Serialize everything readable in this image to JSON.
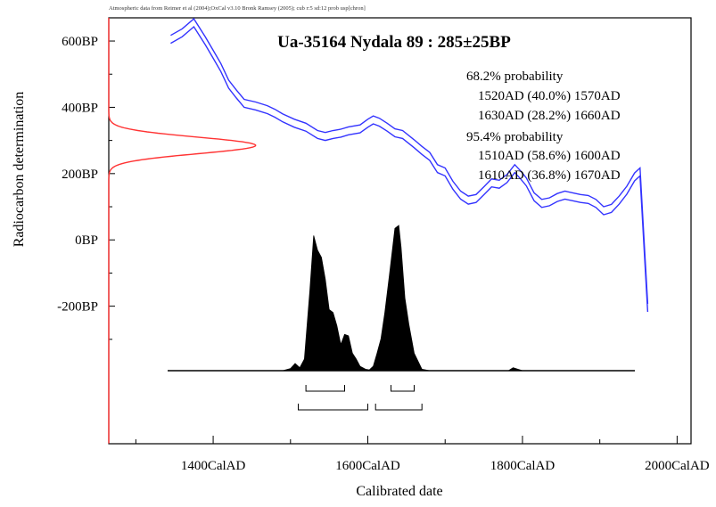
{
  "header_note": "Atmospheric data from Reimer et al (2004);OxCal v3.10 Bronk Ramsey (2005); cub r:5 sd:12 prob usp[chron]",
  "chart_data": {
    "type": "line",
    "title": "Ua-35164 Nydala 89 : 285±25BP",
    "xlabel": "Calibrated date",
    "ylabel": "Radiocarbon determination",
    "xlim": [
      1265,
      2018
    ],
    "ylim": [
      -615,
      670
    ],
    "x_ticks": [
      {
        "value": 1400,
        "label": "1400CalAD"
      },
      {
        "value": 1600,
        "label": "1600CalAD"
      },
      {
        "value": 1800,
        "label": "1800CalAD"
      },
      {
        "value": 2000,
        "label": "2000CalAD"
      }
    ],
    "x_minor_ticks": [
      1300,
      1500,
      1700,
      1900
    ],
    "y_ticks": [
      {
        "value": 600,
        "label": "600BP"
      },
      {
        "value": 400,
        "label": "400BP"
      },
      {
        "value": 200,
        "label": "200BP"
      },
      {
        "value": 0,
        "label": "0BP"
      },
      {
        "value": -200,
        "label": "-200BP"
      }
    ],
    "calibration_curve": {
      "color": "#3333ff",
      "band_halfwidth": 12,
      "points": [
        [
          1345,
          605
        ],
        [
          1360,
          625
        ],
        [
          1375,
          655
        ],
        [
          1390,
          600
        ],
        [
          1400,
          560
        ],
        [
          1410,
          520
        ],
        [
          1420,
          470
        ],
        [
          1430,
          440
        ],
        [
          1440,
          412
        ],
        [
          1455,
          404
        ],
        [
          1470,
          393
        ],
        [
          1480,
          382
        ],
        [
          1490,
          368
        ],
        [
          1505,
          352
        ],
        [
          1520,
          340
        ],
        [
          1535,
          318
        ],
        [
          1545,
          312
        ],
        [
          1555,
          318
        ],
        [
          1565,
          322
        ],
        [
          1575,
          329
        ],
        [
          1590,
          335
        ],
        [
          1600,
          352
        ],
        [
          1607,
          362
        ],
        [
          1615,
          355
        ],
        [
          1625,
          340
        ],
        [
          1635,
          323
        ],
        [
          1645,
          318
        ],
        [
          1660,
          290
        ],
        [
          1670,
          270
        ],
        [
          1680,
          252
        ],
        [
          1690,
          215
        ],
        [
          1700,
          205
        ],
        [
          1710,
          165
        ],
        [
          1720,
          135
        ],
        [
          1730,
          120
        ],
        [
          1740,
          125
        ],
        [
          1750,
          148
        ],
        [
          1760,
          172
        ],
        [
          1770,
          168
        ],
        [
          1780,
          185
        ],
        [
          1790,
          215
        ],
        [
          1798,
          195
        ],
        [
          1805,
          175
        ],
        [
          1815,
          130
        ],
        [
          1825,
          110
        ],
        [
          1835,
          115
        ],
        [
          1845,
          128
        ],
        [
          1855,
          135
        ],
        [
          1865,
          130
        ],
        [
          1875,
          125
        ],
        [
          1885,
          122
        ],
        [
          1895,
          110
        ],
        [
          1905,
          88
        ],
        [
          1915,
          95
        ],
        [
          1925,
          120
        ],
        [
          1935,
          150
        ],
        [
          1945,
          190
        ],
        [
          1952,
          205
        ],
        [
          1958,
          -45
        ],
        [
          1962,
          -205
        ]
      ]
    },
    "measurement_distribution": {
      "color": "#ff3333",
      "mean": 285,
      "sigma": 25
    },
    "calibrated_distribution": {
      "color": "#000000",
      "points": [
        [
          1490,
          0
        ],
        [
          1500,
          0.015
        ],
        [
          1506,
          0.05
        ],
        [
          1512,
          0.02
        ],
        [
          1518,
          0.08
        ],
        [
          1525,
          0.55
        ],
        [
          1530,
          0.93
        ],
        [
          1535,
          0.83
        ],
        [
          1540,
          0.78
        ],
        [
          1545,
          0.63
        ],
        [
          1550,
          0.42
        ],
        [
          1555,
          0.4
        ],
        [
          1560,
          0.31
        ],
        [
          1565,
          0.18
        ],
        [
          1570,
          0.25
        ],
        [
          1575,
          0.24
        ],
        [
          1580,
          0.12
        ],
        [
          1585,
          0.08
        ],
        [
          1590,
          0.03
        ],
        [
          1597,
          0.01
        ],
        [
          1602,
          0.005
        ],
        [
          1607,
          0.03
        ],
        [
          1612,
          0.12
        ],
        [
          1617,
          0.22
        ],
        [
          1622,
          0.4
        ],
        [
          1628,
          0.66
        ],
        [
          1635,
          0.98
        ],
        [
          1640,
          1.0
        ],
        [
          1643,
          0.85
        ],
        [
          1648,
          0.5
        ],
        [
          1653,
          0.32
        ],
        [
          1660,
          0.12
        ],
        [
          1670,
          0.01
        ],
        [
          1680,
          0
        ],
        [
          1782,
          0
        ],
        [
          1788,
          0.02
        ],
        [
          1794,
          0.01
        ],
        [
          1800,
          0
        ]
      ]
    },
    "range_brackets": [
      {
        "level": "68.2%",
        "ranges": [
          [
            1520,
            1570
          ],
          [
            1630,
            1660
          ]
        ]
      },
      {
        "level": "95.4%",
        "ranges": [
          [
            1510,
            1600
          ],
          [
            1610,
            1670
          ]
        ]
      }
    ],
    "annotations": [
      "68.2% probability",
      "1520AD (40.0%) 1570AD",
      "1630AD (28.2%) 1660AD",
      "95.4% probability",
      "1510AD (58.6%) 1600AD",
      "1610AD (36.8%) 1670AD"
    ]
  }
}
